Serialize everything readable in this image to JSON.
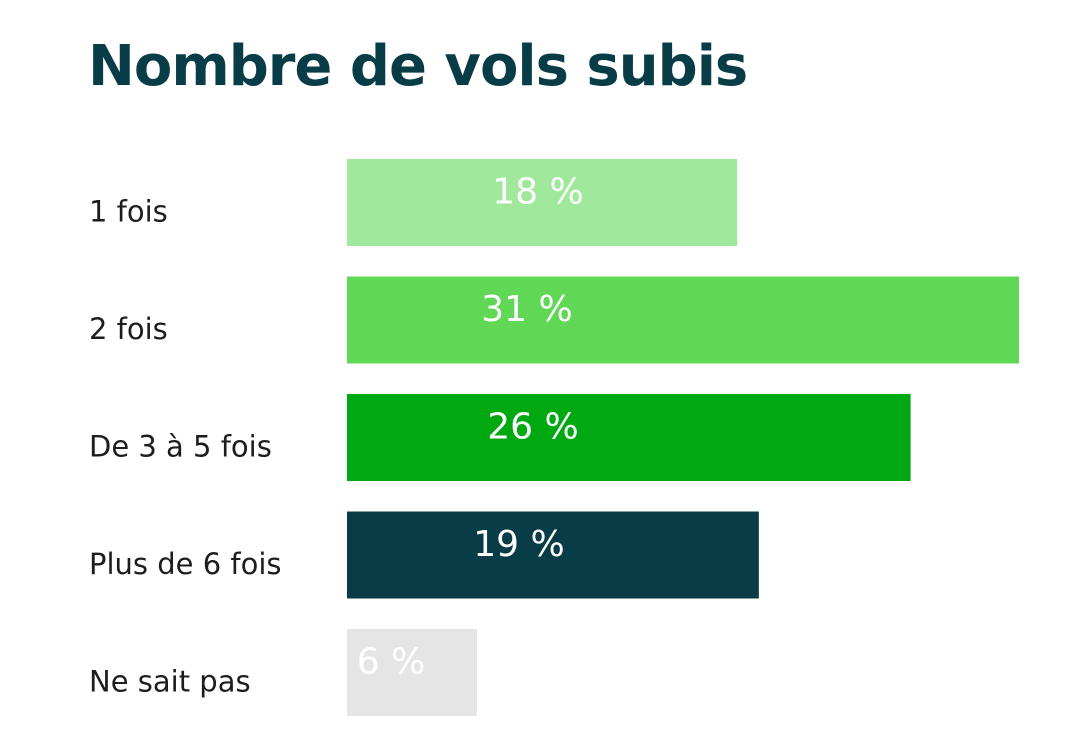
{
  "chart_data": {
    "type": "bar",
    "orientation": "horizontal",
    "title": "Nombre de vols subis",
    "categories": [
      "1 fois",
      "2 fois",
      "De 3 à 5 fois",
      "Plus de 6 fois",
      "Ne sait pas"
    ],
    "values": [
      18,
      31,
      26,
      19,
      6
    ],
    "value_labels": [
      "18 %",
      "31 %",
      "26 %",
      "19 %",
      "6 %"
    ],
    "colors": [
      "#a0e99c",
      "#60d855",
      "#00a812",
      "#083d47",
      "#e5e5e5"
    ],
    "xlim": [
      0,
      31
    ],
    "xlabel": "",
    "ylabel": "",
    "grid": false,
    "legend": "none"
  }
}
